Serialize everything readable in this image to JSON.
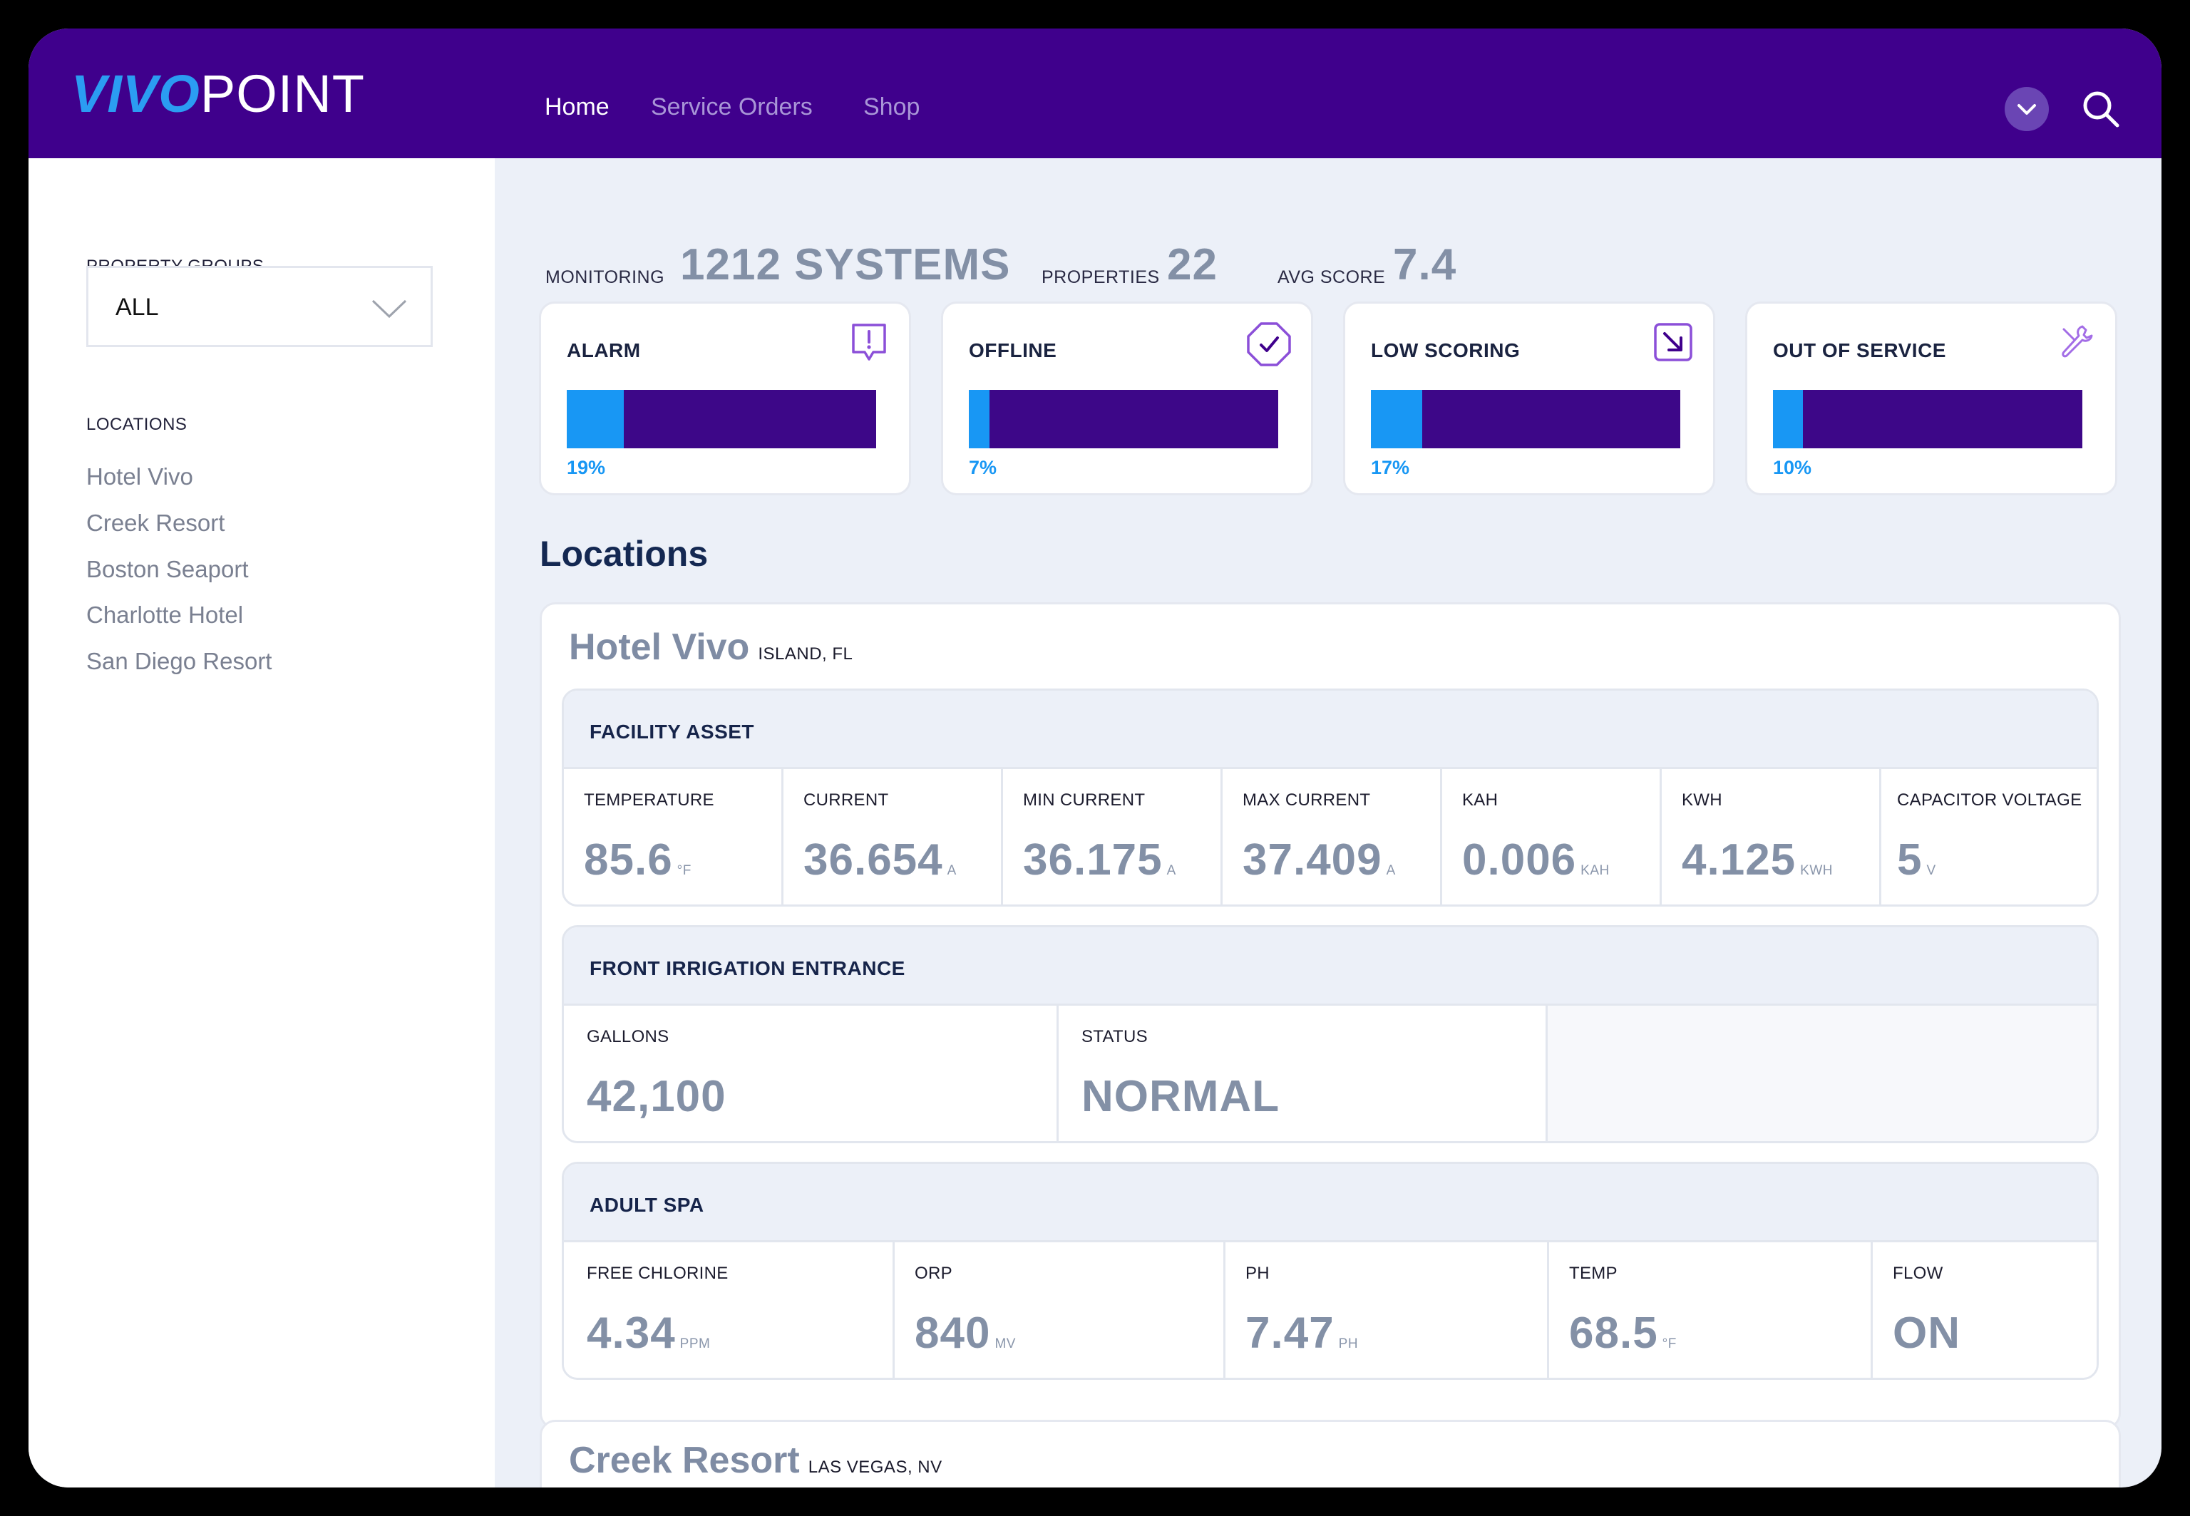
{
  "header": {
    "logo_bold": "VIVO",
    "logo_light": "POINT",
    "nav": [
      {
        "label": "Home",
        "active": true
      },
      {
        "label": "Service Orders",
        "active": false
      },
      {
        "label": "Shop",
        "active": false
      }
    ]
  },
  "sidebar": {
    "groups_label": "PROPERTY GROUPS",
    "groups_value": "ALL",
    "locations_label": "LOCATIONS",
    "locations": [
      "Hotel Vivo",
      "Creek Resort",
      "Boston Seaport",
      "Charlotte Hotel",
      "San Diego Resort"
    ]
  },
  "stats": {
    "monitoring_label": "MONITORING",
    "monitoring_value": "1212 SYSTEMS",
    "properties_label": "PROPERTIES",
    "properties_value": "22",
    "avg_label": "AVG SCORE",
    "avg_value": "7.4"
  },
  "status_cards": [
    {
      "title": "ALARM",
      "percent": 19,
      "percent_label": "19%",
      "icon": "alarm-chat-icon"
    },
    {
      "title": "OFFLINE",
      "percent": 7,
      "percent_label": "7%",
      "icon": "check-octagon-icon"
    },
    {
      "title": "LOW SCORING",
      "percent": 17,
      "percent_label": "17%",
      "icon": "arrow-down-right-icon"
    },
    {
      "title": "OUT OF SERVICE",
      "percent": 10,
      "percent_label": "10%",
      "icon": "wrench-icon"
    }
  ],
  "locations_heading": "Locations",
  "locations": [
    {
      "name": "Hotel Vivo",
      "place": "ISLAND, FL",
      "assets": [
        {
          "title": "FACILITY ASSET",
          "metrics": [
            {
              "label": "TEMPERATURE",
              "value": "85.6",
              "unit": "°F"
            },
            {
              "label": "CURRENT",
              "value": "36.654",
              "unit": "A"
            },
            {
              "label": "MIN CURRENT",
              "value": "36.175",
              "unit": "A"
            },
            {
              "label": "MAX CURRENT",
              "value": "37.409",
              "unit": "A"
            },
            {
              "label": "KAH",
              "value": "0.006",
              "unit": "KAH"
            },
            {
              "label": "KWH",
              "value": "4.125",
              "unit": "KWH"
            },
            {
              "label": "CAPACITOR VOLTAGE",
              "value": "5",
              "unit": "V"
            }
          ]
        },
        {
          "title": "FRONT IRRIGATION ENTRANCE",
          "metrics": [
            {
              "label": "GALLONS",
              "value": "42,100",
              "unit": ""
            },
            {
              "label": "STATUS",
              "value": "NORMAL",
              "unit": ""
            }
          ]
        },
        {
          "title": "ADULT SPA",
          "metrics": [
            {
              "label": "FREE CHLORINE",
              "value": "4.34",
              "unit": "PPM"
            },
            {
              "label": "ORP",
              "value": "840",
              "unit": "MV"
            },
            {
              "label": "PH",
              "value": "7.47",
              "unit": "PH"
            },
            {
              "label": "TEMP",
              "value": "68.5",
              "unit": "°F"
            },
            {
              "label": "FLOW",
              "value": "ON",
              "unit": ""
            }
          ]
        }
      ]
    },
    {
      "name": "Creek Resort",
      "place": "LAS VEGAS, NV",
      "assets": []
    }
  ],
  "colors": {
    "header": "#3f008c",
    "accent_blue": "#1897f4",
    "bar_dark": "#3d0788",
    "value_gray": "#8390a6",
    "icon_purple": "#8b4fd8"
  }
}
